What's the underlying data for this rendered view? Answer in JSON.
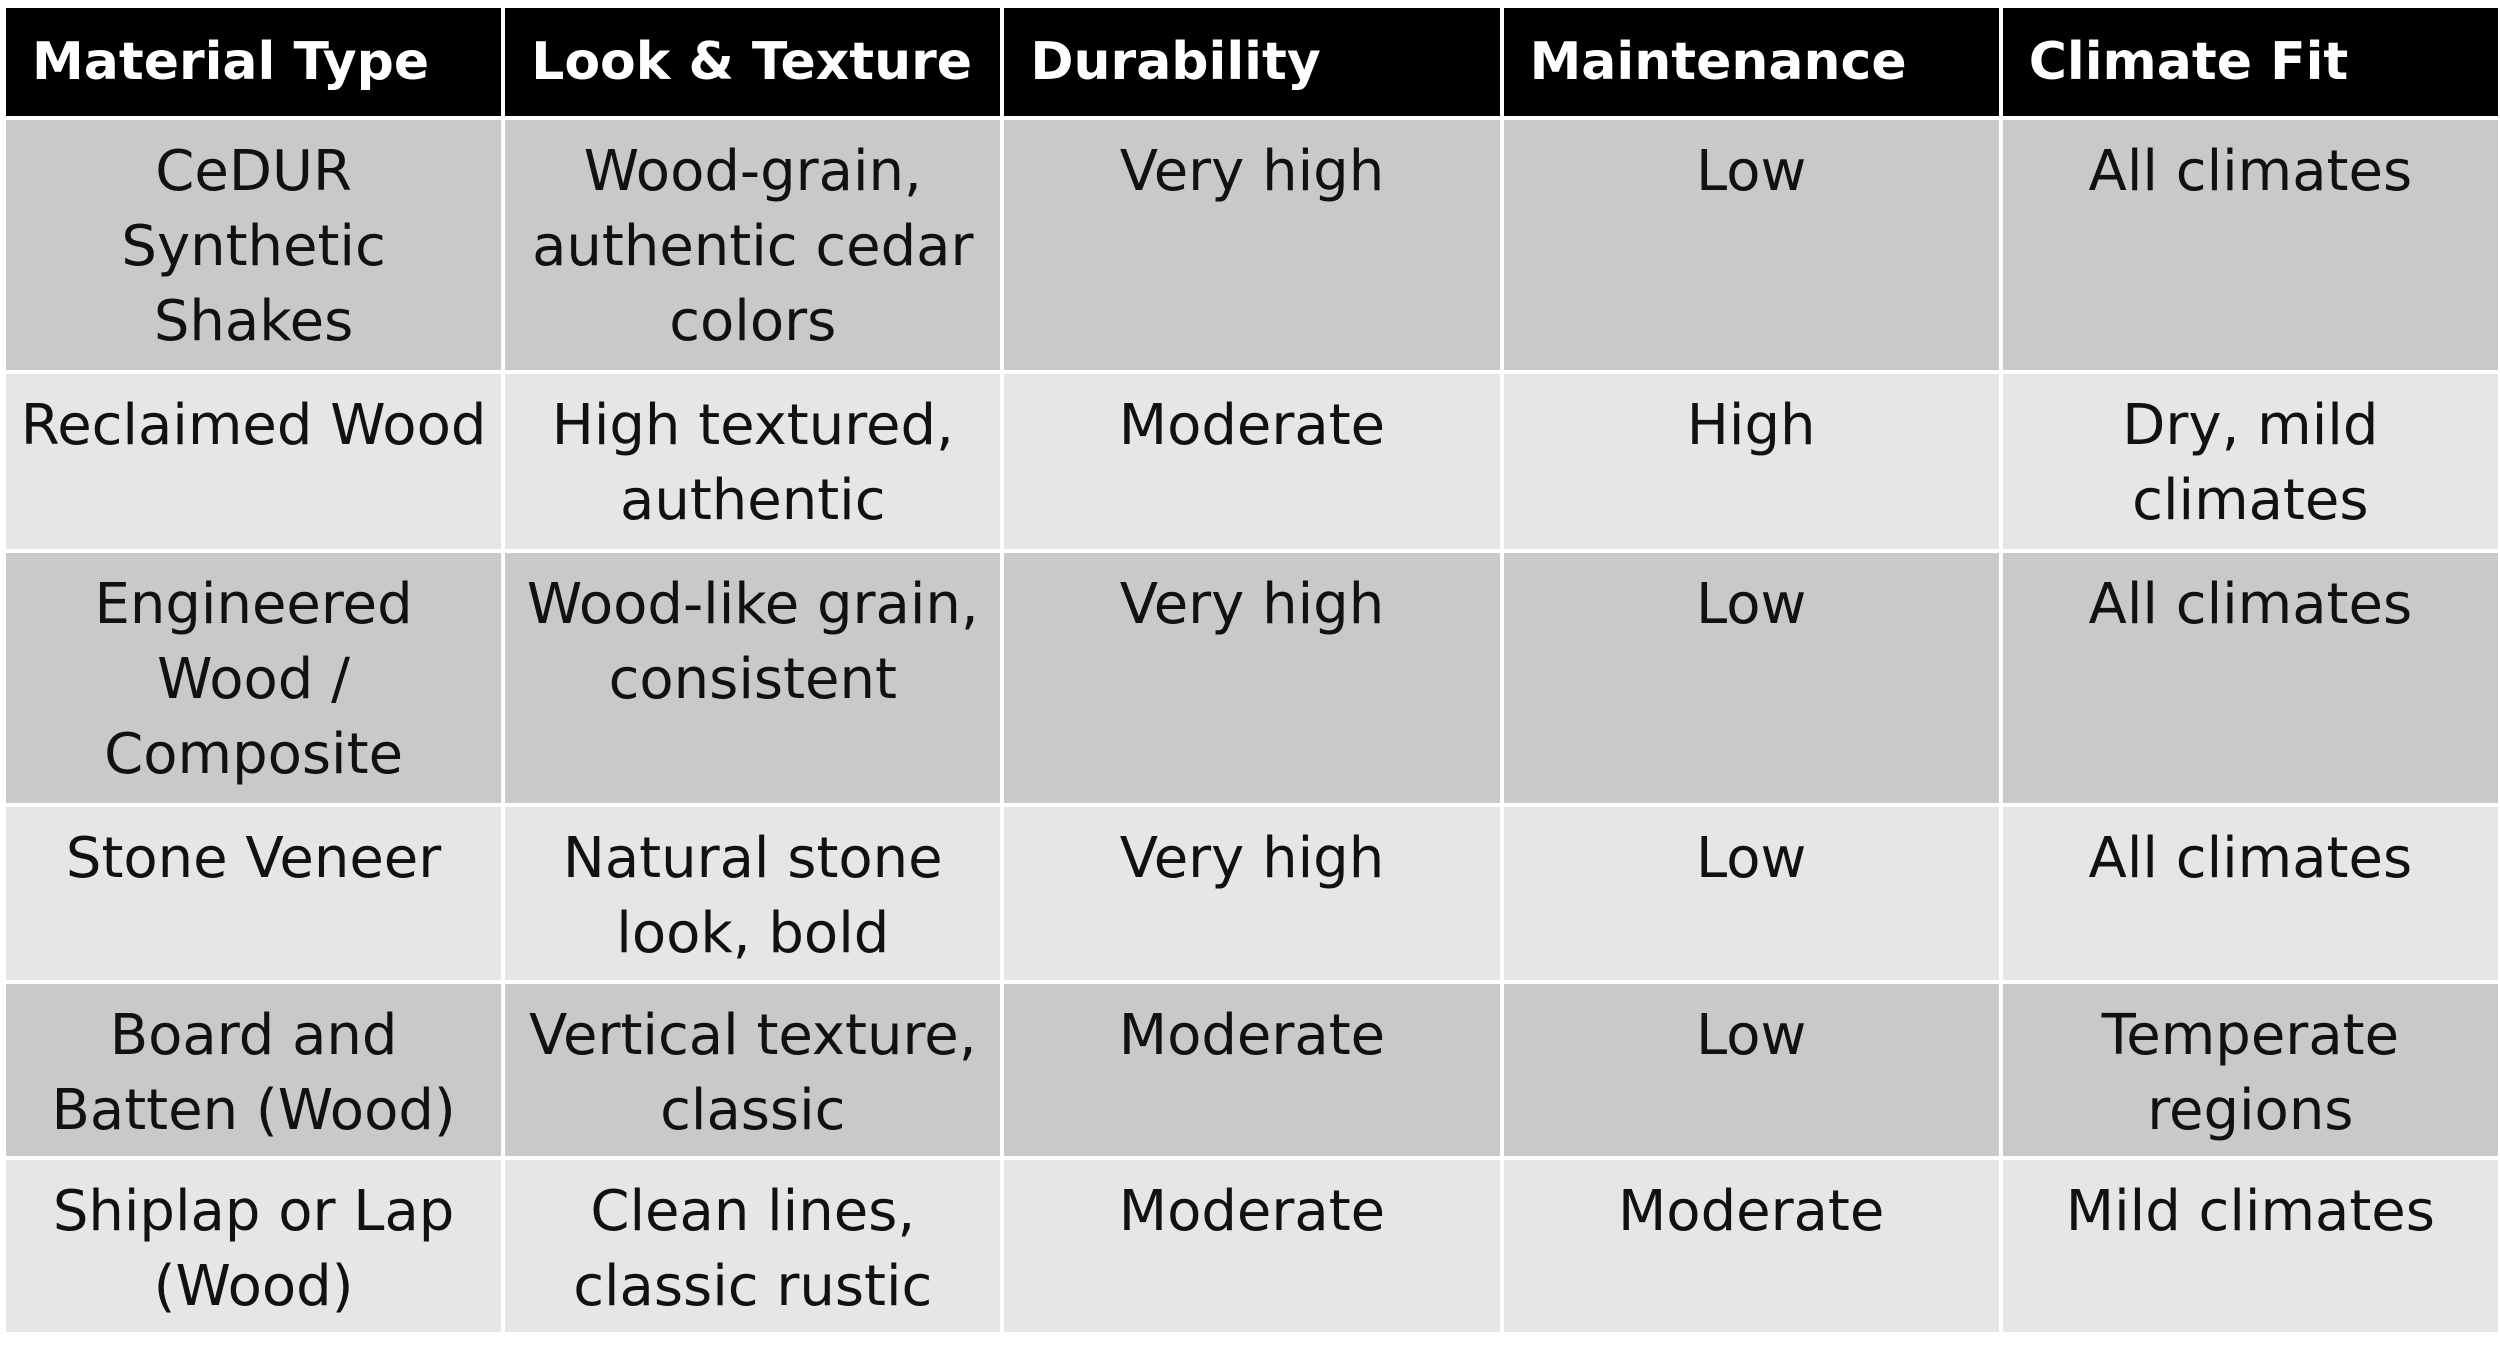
{
  "table": {
    "headers": [
      "Material Type",
      "Look & Texture",
      "Durability",
      "Maintenance",
      "Climate Fit"
    ],
    "rows": [
      [
        "CeDUR Synthetic Shakes",
        "Wood-grain, authentic cedar colors",
        "Very high",
        "Low",
        "All climates"
      ],
      [
        "Reclaimed Wood",
        "High textured, authentic",
        "Moderate",
        "High",
        "Dry, mild climates"
      ],
      [
        "Engineered Wood / Composite",
        "Wood-like grain, consistent",
        "Very high",
        "Low",
        "All climates"
      ],
      [
        "Stone Veneer",
        "Natural stone look, bold",
        "Very high",
        "Low",
        "All climates"
      ],
      [
        "Board and Batten (Wood)",
        "Vertical texture, classic",
        "Moderate",
        "Low",
        "Temperate regions"
      ],
      [
        "Shiplap or Lap (Wood)",
        "Clean lines, classic rustic",
        "Moderate",
        "Moderate",
        "Mild climates"
      ]
    ]
  },
  "colors": {
    "header_bg": "#000000",
    "header_text": "#ffffff",
    "row_dark": "#c9c9c9",
    "row_light": "#e6e6e6",
    "border": "#ffffff"
  }
}
